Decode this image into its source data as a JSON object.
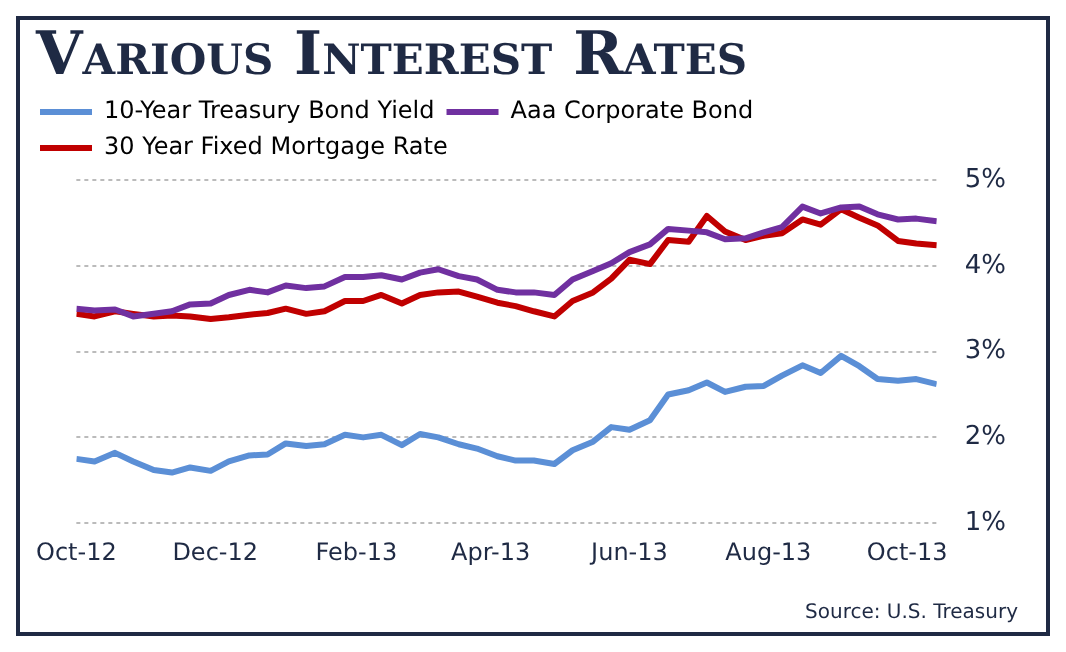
{
  "chart_data": {
    "type": "line",
    "title": "Various Interest Rates",
    "x": [
      "2012-10-01",
      "2012-10-09",
      "2012-10-18",
      "2012-10-26",
      "2012-11-04",
      "2012-11-12",
      "2012-11-20",
      "2012-11-29",
      "2012-12-07",
      "2012-12-16",
      "2012-12-24",
      "2013-01-01",
      "2013-01-10",
      "2013-01-18",
      "2013-01-27",
      "2013-02-04",
      "2013-02-12",
      "2013-02-21",
      "2013-03-01",
      "2013-03-09",
      "2013-03-18",
      "2013-03-26",
      "2013-04-04",
      "2013-04-12",
      "2013-04-20",
      "2013-04-29",
      "2013-05-07",
      "2013-05-16",
      "2013-05-24",
      "2013-06-01",
      "2013-06-10",
      "2013-06-18",
      "2013-06-27",
      "2013-07-05",
      "2013-07-13",
      "2013-07-22",
      "2013-07-30",
      "2013-08-07",
      "2013-08-16",
      "2013-08-24",
      "2013-09-02",
      "2013-09-10",
      "2013-09-18",
      "2013-09-27",
      "2013-10-05",
      "2013-10-14"
    ],
    "series": [
      {
        "name": "10-Year Treasury Bond Yield",
        "color": "#5b8fd6",
        "values": [
          1.75,
          1.72,
          1.82,
          1.72,
          1.62,
          1.59,
          1.65,
          1.61,
          1.72,
          1.79,
          1.8,
          1.93,
          1.9,
          1.92,
          2.03,
          2.0,
          2.03,
          1.91,
          2.04,
          2.0,
          1.92,
          1.87,
          1.78,
          1.73,
          1.73,
          1.69,
          1.85,
          1.95,
          2.12,
          2.09,
          2.2,
          2.5,
          2.55,
          2.64,
          2.53,
          2.59,
          2.6,
          2.72,
          2.84,
          2.75,
          2.95,
          2.83,
          2.68,
          2.66,
          2.68,
          2.62
        ]
      },
      {
        "name": "Aaa Corporate Bond",
        "color": "#7030a0",
        "values": [
          3.5,
          3.48,
          3.49,
          3.41,
          3.44,
          3.47,
          3.55,
          3.56,
          3.66,
          3.72,
          3.69,
          3.77,
          3.74,
          3.76,
          3.87,
          3.87,
          3.89,
          3.84,
          3.92,
          3.96,
          3.88,
          3.84,
          3.72,
          3.69,
          3.69,
          3.66,
          3.84,
          3.94,
          4.03,
          4.16,
          4.25,
          4.43,
          4.41,
          4.39,
          4.31,
          4.32,
          4.39,
          4.45,
          4.69,
          4.61,
          4.68,
          4.69,
          4.6,
          4.54,
          4.55,
          4.52
        ]
      },
      {
        "name": "30 Year Fixed Mortgage Rate",
        "color": "#c00000",
        "values": [
          3.44,
          3.41,
          3.47,
          3.44,
          3.41,
          3.42,
          3.41,
          3.38,
          3.4,
          3.43,
          3.45,
          3.5,
          3.44,
          3.47,
          3.59,
          3.59,
          3.66,
          3.56,
          3.66,
          3.69,
          3.7,
          3.64,
          3.57,
          3.53,
          3.47,
          3.41,
          3.59,
          3.69,
          3.85,
          4.07,
          4.02,
          4.3,
          4.28,
          4.58,
          4.4,
          4.3,
          4.35,
          4.38,
          4.54,
          4.48,
          4.66,
          4.56,
          4.47,
          4.29,
          4.26,
          4.24
        ]
      }
    ],
    "xlim": [
      "2012-10-01",
      "2013-10-14"
    ],
    "xticks": [
      {
        "value": "2012-10-01",
        "label": "Oct-12"
      },
      {
        "value": "2012-12-01",
        "label": "Dec-12"
      },
      {
        "value": "2013-02-01",
        "label": "Feb-13"
      },
      {
        "value": "2013-04-01",
        "label": "Apr-13"
      },
      {
        "value": "2013-06-01",
        "label": "Jun-13"
      },
      {
        "value": "2013-08-01",
        "label": "Aug-13"
      },
      {
        "value": "2013-10-01",
        "label": "Oct-13"
      }
    ],
    "ylim": [
      1,
      5
    ],
    "yticks": [
      {
        "value": 1,
        "label": "1%"
      },
      {
        "value": 2,
        "label": "2%"
      },
      {
        "value": 3,
        "label": "3%"
      },
      {
        "value": 4,
        "label": "4%"
      },
      {
        "value": 5,
        "label": "5%"
      }
    ],
    "grid": "y",
    "legend": "top left",
    "marker": "none",
    "line_style": "solid",
    "annotations": [
      "Source: U.S. Treasury"
    ]
  }
}
